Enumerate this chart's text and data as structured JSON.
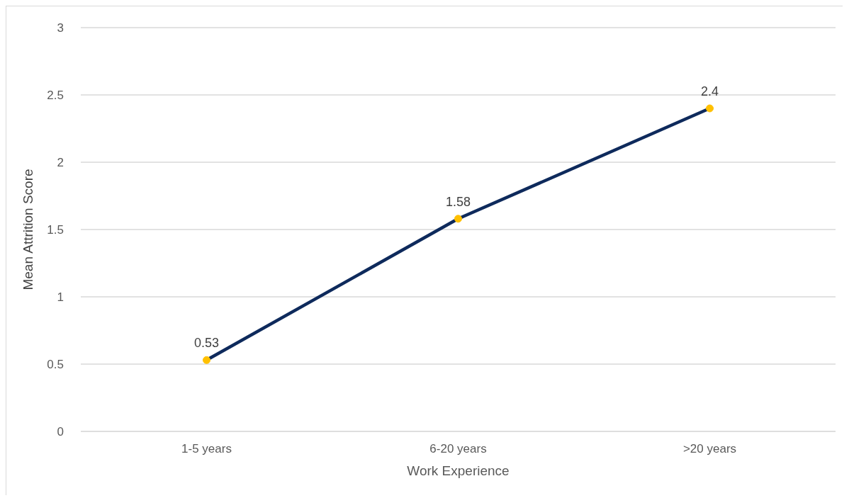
{
  "chart_data": {
    "type": "line",
    "xlabel": "Work Experience",
    "ylabel": "Mean Attrition Score",
    "categories": [
      "1-5 years",
      "6-20 years",
      ">20 years"
    ],
    "series": [
      {
        "color": "#0e2a5c",
        "colors": [
          "#ffc000",
          "#ffc000",
          "#ffc000"
        ],
        "values": [
          0.53,
          1.58,
          2.4
        ]
      }
    ],
    "ylim": [
      0,
      3
    ],
    "yticks": [
      0,
      0.5,
      1,
      1.5,
      2,
      2.5,
      3
    ],
    "grid": "y",
    "legend": false,
    "data_labels": true,
    "marker": "circle",
    "line_style": "solid"
  }
}
